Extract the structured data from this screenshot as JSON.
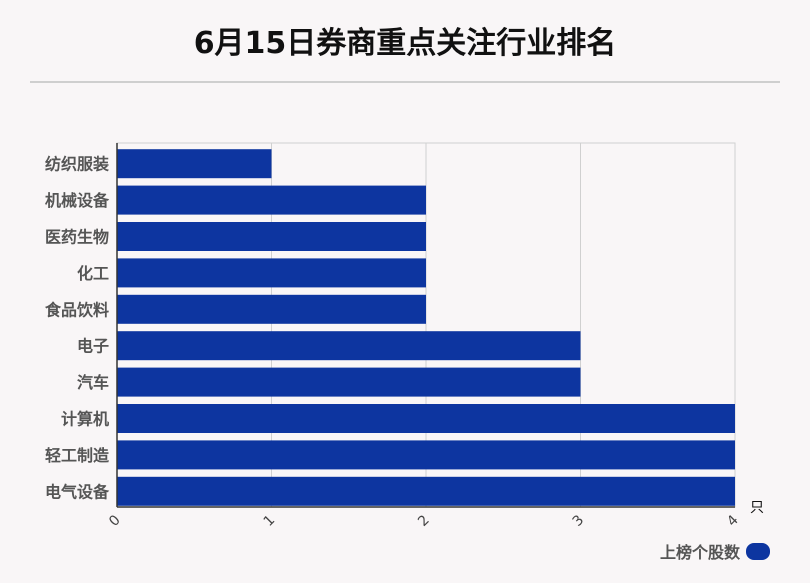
{
  "title": "6月15日券商重点关注行业排名",
  "colors": {
    "bar": "#0d35a0",
    "grid": "#d0d0d0",
    "axis": "#333333",
    "background": "#f9f6f7"
  },
  "chart_data": {
    "type": "bar",
    "orientation": "horizontal",
    "title": "6月15日券商重点关注行业排名",
    "categories": [
      "纺织服装",
      "机械设备",
      "医药生物",
      "化工",
      "食品饮料",
      "电子",
      "汽车",
      "计算机",
      "轻工制造",
      "电气设备"
    ],
    "series": [
      {
        "name": "上榜个股数",
        "values": [
          1,
          2,
          2,
          2,
          2,
          3,
          3,
          4,
          4,
          4
        ]
      }
    ],
    "xlim": [
      0,
      4
    ],
    "xticks": [
      "0",
      "1",
      "2",
      "3",
      "4"
    ],
    "xunit": "只",
    "grid": true,
    "legend": "bottom-right"
  }
}
